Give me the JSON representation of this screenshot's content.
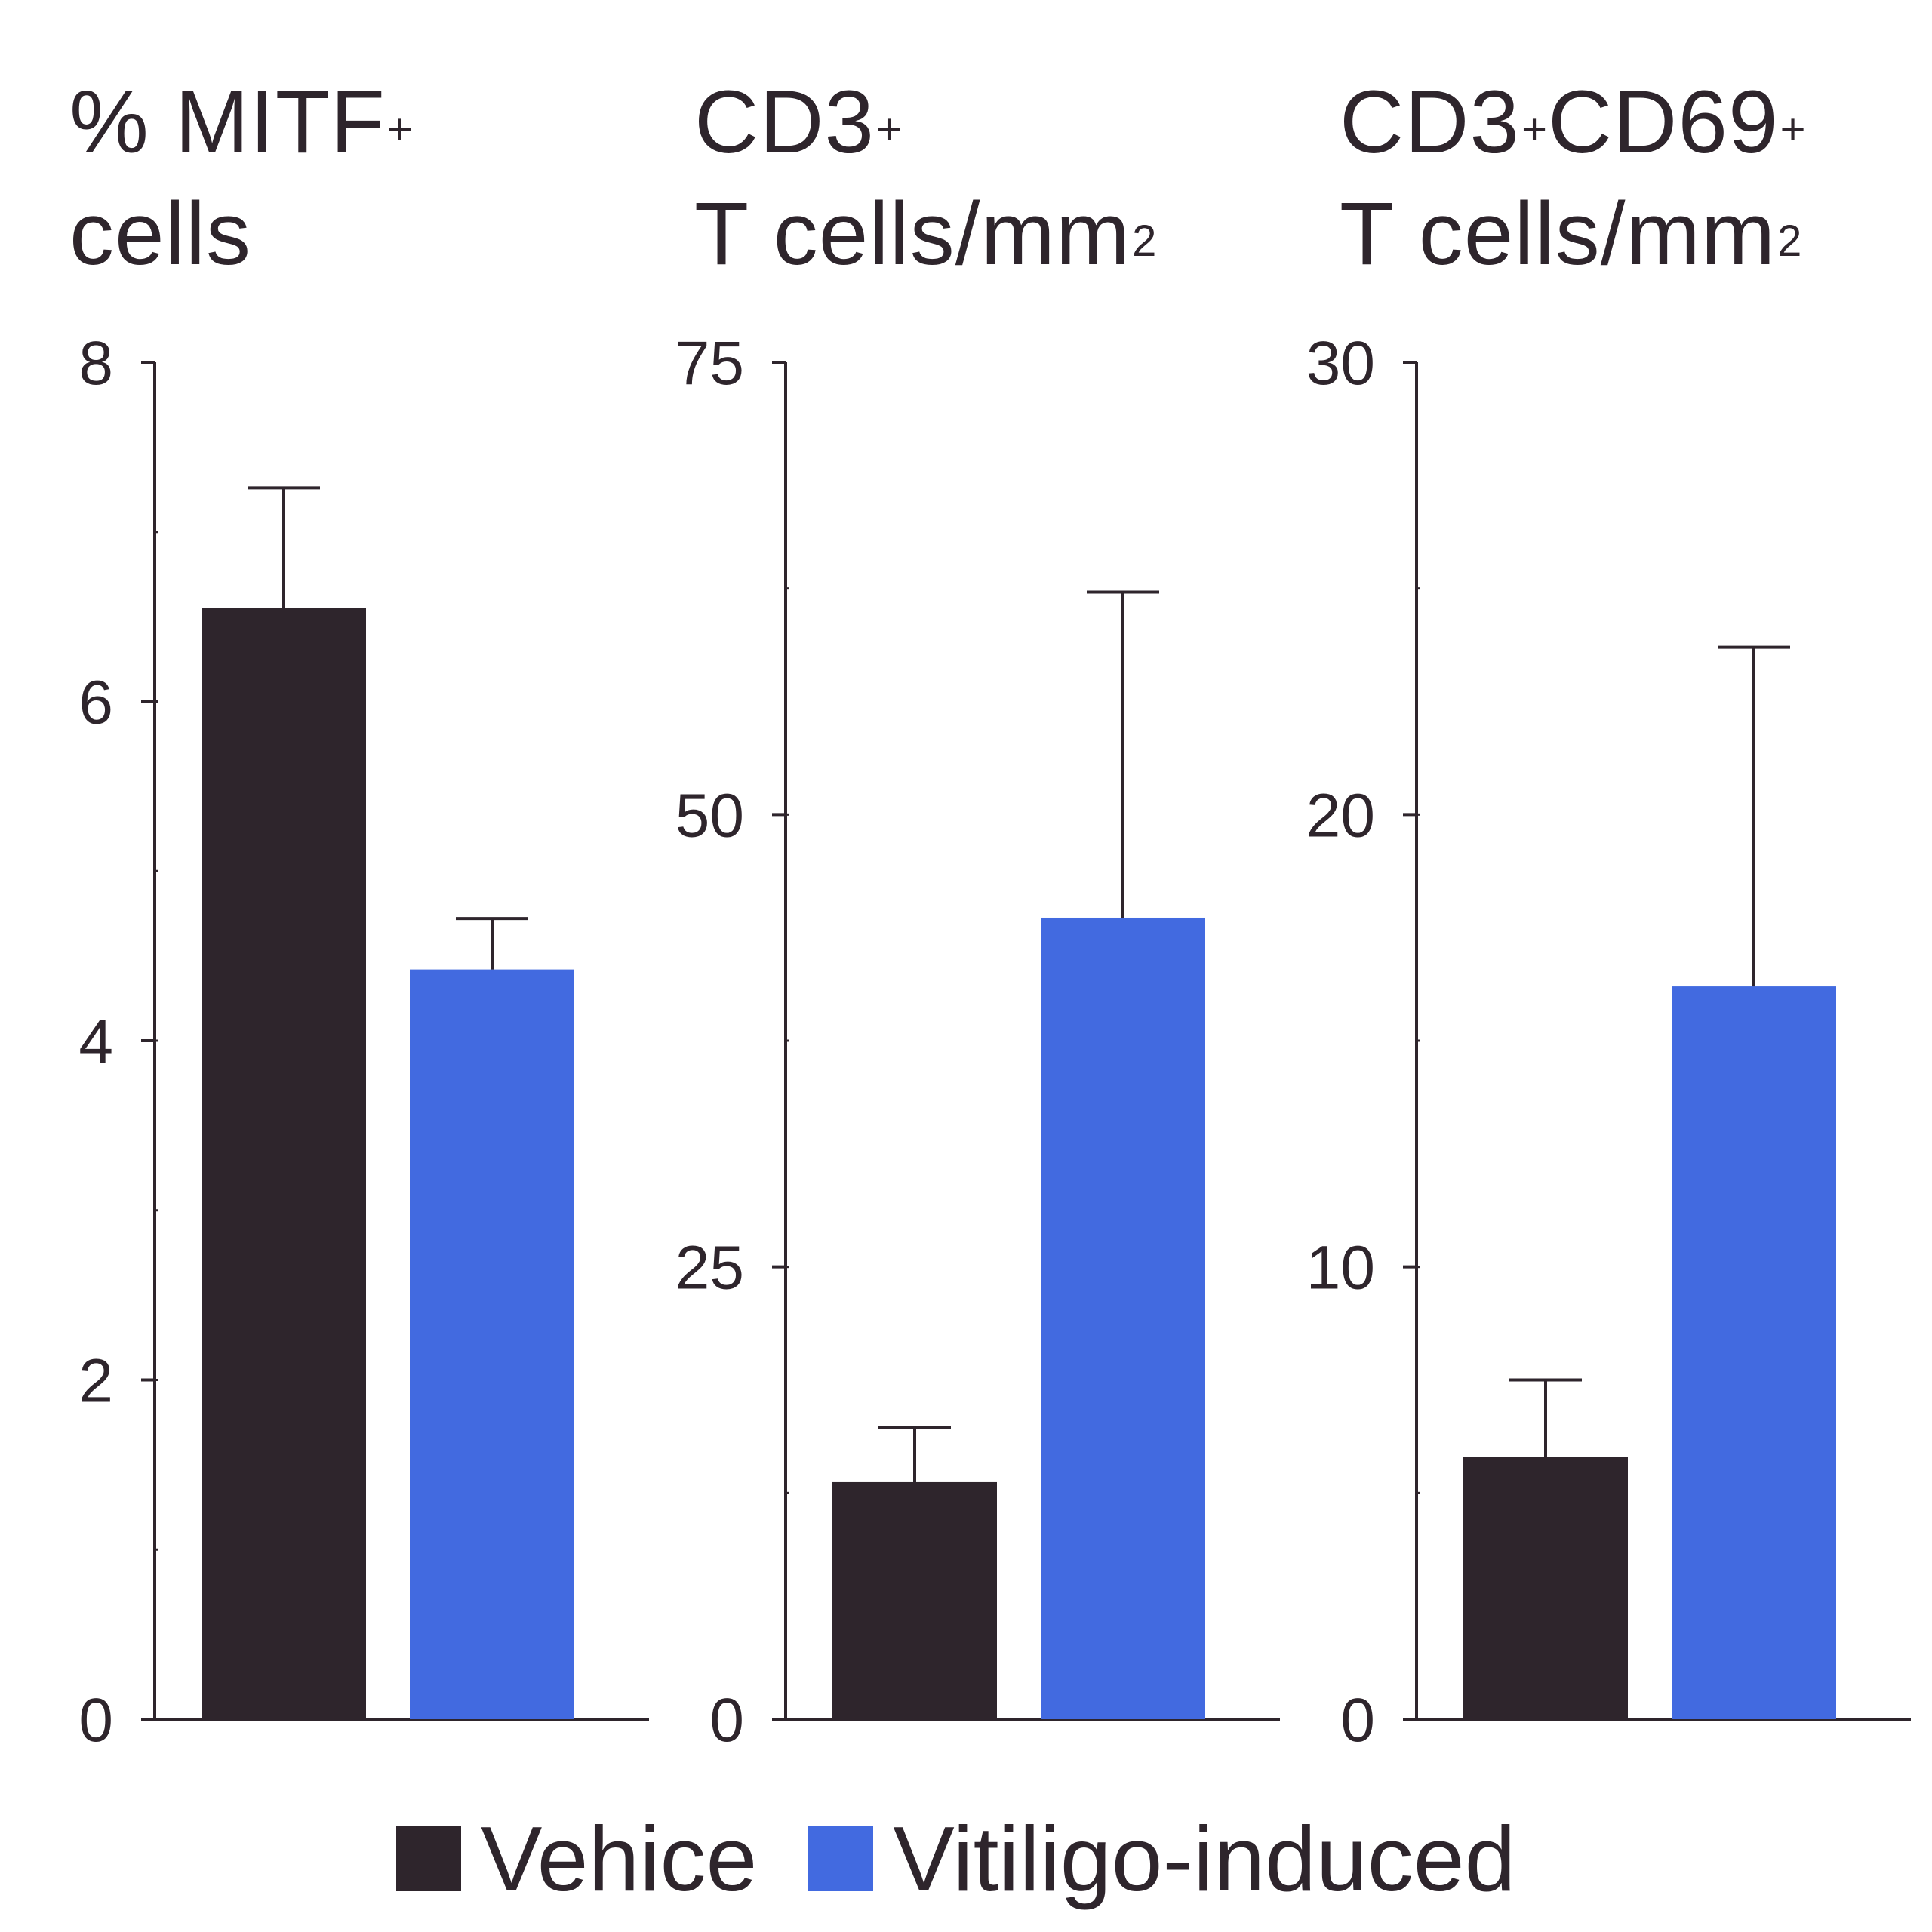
{
  "colors": {
    "vehicle": "#2e252c",
    "vitiligo": "#426ae0",
    "axis": "#2e252c"
  },
  "titles": [
    {
      "line1_main": "% MITF",
      "line1_sup": "+",
      "line1_main2": "",
      "line1_sup2": "",
      "line2_main": "cells",
      "line2_sup": ""
    },
    {
      "line1_main": "CD3",
      "line1_sup": "+",
      "line1_main2": "",
      "line1_sup2": "",
      "line2_main": "T cells/mm",
      "line2_sup": "2"
    },
    {
      "line1_main": "CD3",
      "line1_sup": "+",
      "line1_main2": "CD69",
      "line1_sup2": "+",
      "line2_main": "T cells/mm",
      "line2_sup": "2"
    }
  ],
  "legend": {
    "items": [
      {
        "label": "Vehice"
      },
      {
        "label": "Vitiligo-induced"
      }
    ]
  },
  "chart_data": [
    {
      "type": "bar",
      "title": "% MITF+ cells",
      "categories": [
        "Vehice",
        "Vitiligo-induced"
      ],
      "values": [
        6.55,
        4.42
      ],
      "error": [
        0.71,
        0.3
      ],
      "ylim": [
        0,
        8
      ],
      "yticks": [
        "0",
        "2",
        "4",
        "6",
        "8"
      ],
      "tick_values": [
        0,
        2,
        4,
        6,
        8
      ],
      "minor_step": 1
    },
    {
      "type": "bar",
      "title": "CD3+ T cells/mm2",
      "categories": [
        "Vehice",
        "Vitiligo-induced"
      ],
      "values": [
        13.1,
        44.3
      ],
      "error": [
        3.0,
        18.0
      ],
      "ylim": [
        0,
        75
      ],
      "yticks": [
        "0",
        "25",
        "50",
        "75"
      ],
      "tick_values": [
        0,
        25,
        50,
        75
      ],
      "minor_step": 12.5
    },
    {
      "type": "bar",
      "title": "CD3+CD69+ T cells/mm2",
      "categories": [
        "Vehice",
        "Vitiligo-induced"
      ],
      "values": [
        5.8,
        16.2
      ],
      "error": [
        1.7,
        7.5
      ],
      "ylim": [
        0,
        30
      ],
      "yticks": [
        "0",
        "10",
        "20",
        "30"
      ],
      "tick_values": [
        0,
        10,
        20,
        30
      ],
      "minor_step": 5
    }
  ]
}
